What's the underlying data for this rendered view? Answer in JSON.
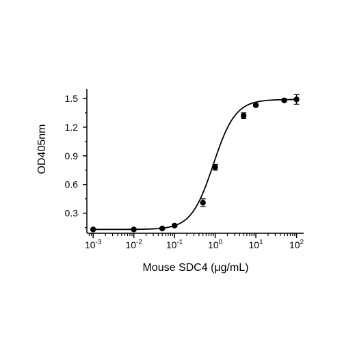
{
  "chart_data": {
    "type": "scatter",
    "xlabel": "Mouse SDC4 (μg/mL)",
    "ylabel": "OD405nm",
    "xscale": "log",
    "xlim": [
      0.0007,
      150
    ],
    "ylim": [
      0.09,
      1.6
    ],
    "x_ticks": [
      {
        "value": 0.001,
        "base": "10",
        "exp": "-3"
      },
      {
        "value": 0.01,
        "base": "10",
        "exp": "-2"
      },
      {
        "value": 0.1,
        "base": "10",
        "exp": "-1"
      },
      {
        "value": 1,
        "base": "10",
        "exp": "0"
      },
      {
        "value": 10,
        "base": "10",
        "exp": "1"
      },
      {
        "value": 100,
        "base": "10",
        "exp": "2"
      }
    ],
    "y_ticks": [
      {
        "value": 0.3,
        "label": "0.3"
      },
      {
        "value": 0.6,
        "label": "0.6"
      },
      {
        "value": 0.9,
        "label": "0.9"
      },
      {
        "value": 1.2,
        "label": "1.2"
      },
      {
        "value": 1.5,
        "label": "1.5"
      }
    ],
    "grid": false,
    "legend": "none",
    "colors": {
      "points": "#000000",
      "curve": "#000000",
      "axis": "#000000"
    },
    "series": [
      {
        "points": [
          {
            "x": 0.001,
            "y": 0.13,
            "err": 0.01
          },
          {
            "x": 0.01,
            "y": 0.13,
            "err": 0.01
          },
          {
            "x": 0.05,
            "y": 0.14,
            "err": 0.01
          },
          {
            "x": 0.1,
            "y": 0.17,
            "err": 0.01
          },
          {
            "x": 0.5,
            "y": 0.41,
            "err": 0.04
          },
          {
            "x": 1,
            "y": 0.78,
            "err": 0.03
          },
          {
            "x": 5,
            "y": 1.32,
            "err": 0.03
          },
          {
            "x": 10,
            "y": 1.43,
            "err": 0.01
          },
          {
            "x": 50,
            "y": 1.48,
            "err": 0.01
          },
          {
            "x": 100,
            "y": 1.49,
            "err": 0.05
          }
        ],
        "fit": {
          "model": "4PL",
          "bottom": 0.13,
          "top": 1.49,
          "ec50": 0.9,
          "hill": 1.6
        }
      }
    ]
  }
}
